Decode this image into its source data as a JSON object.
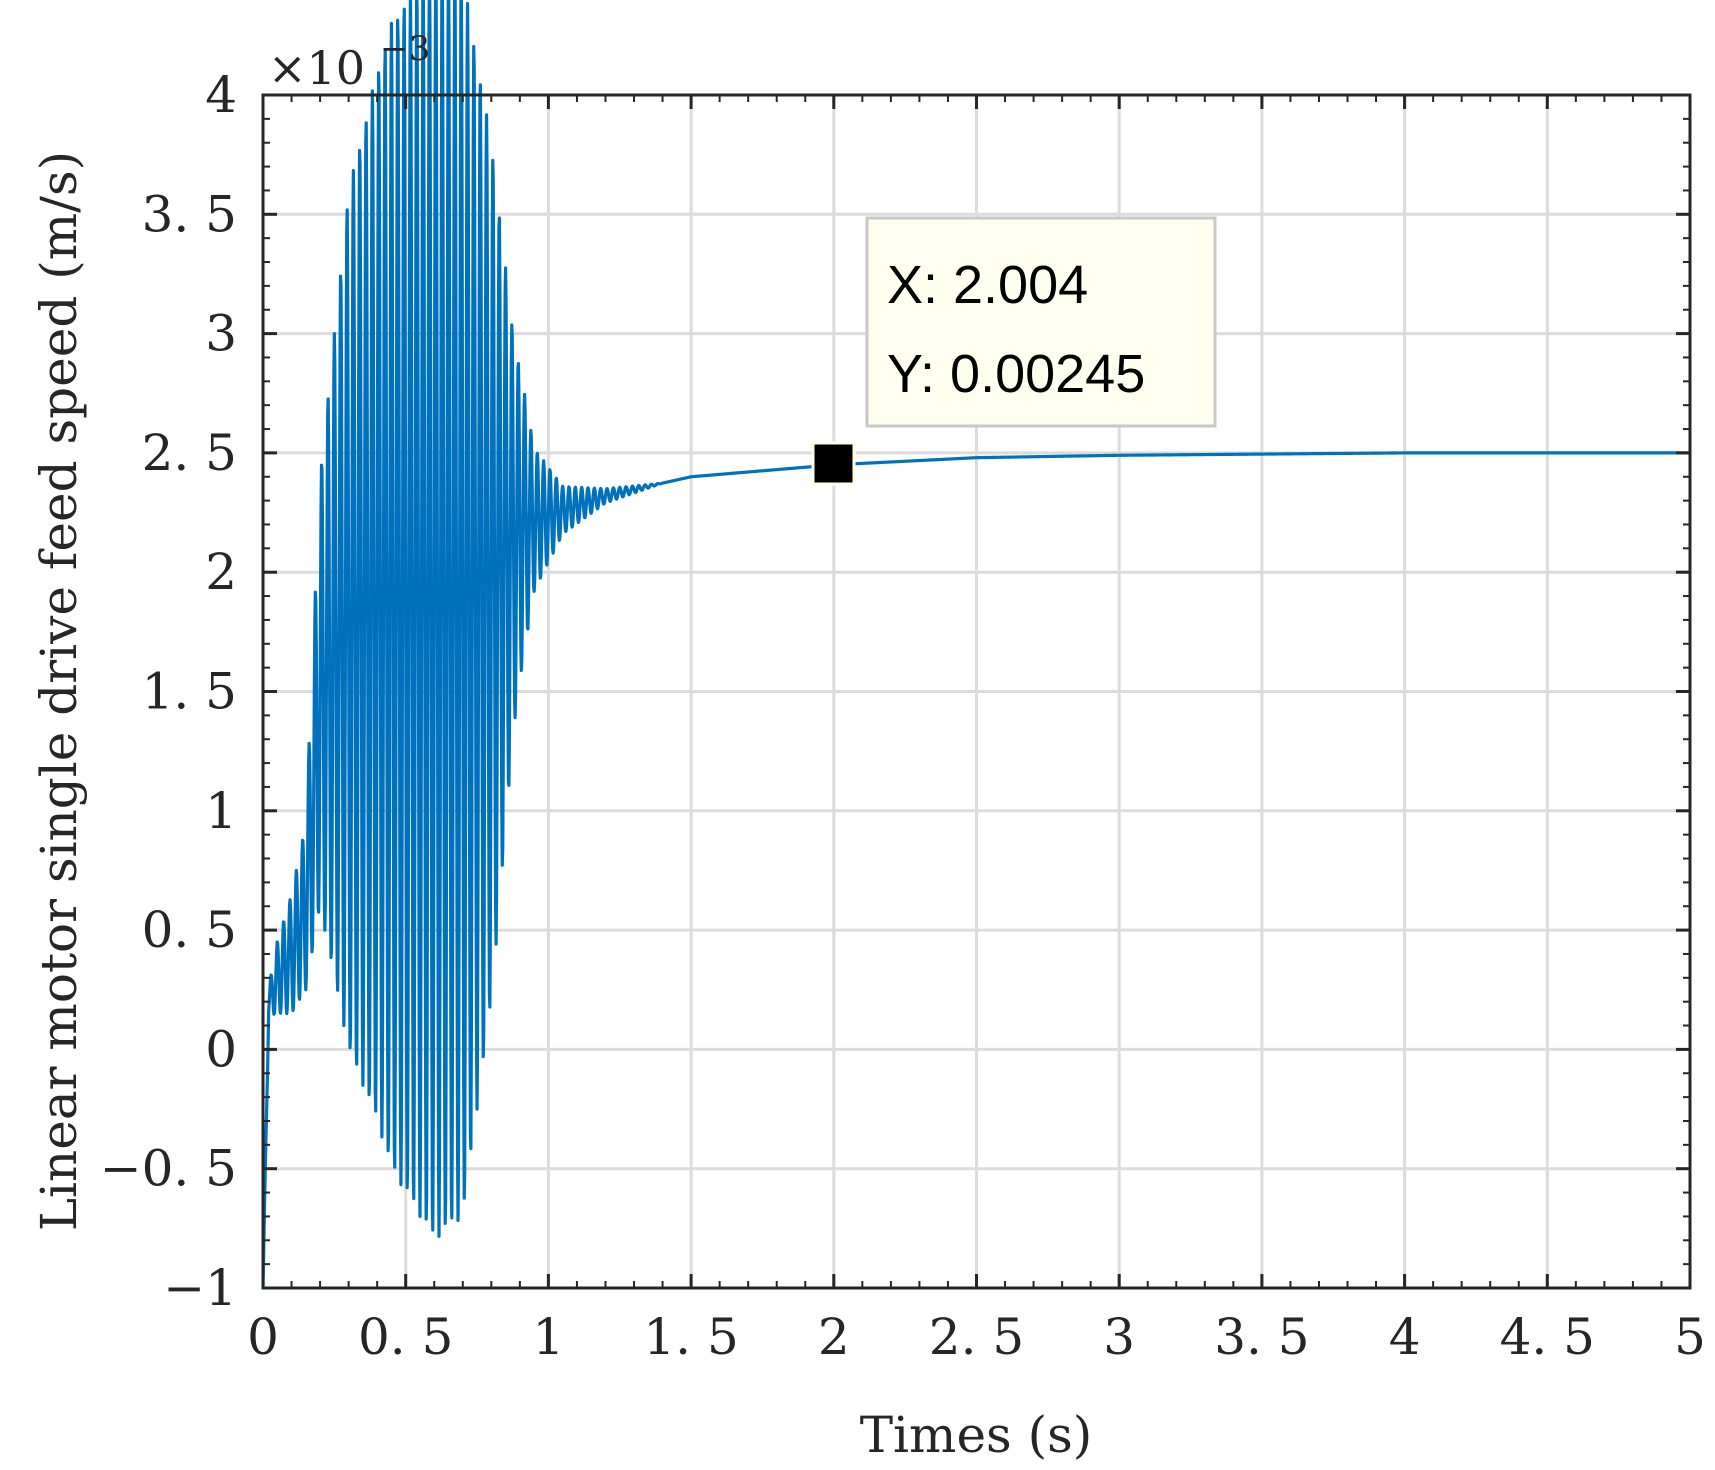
{
  "chart_data": {
    "type": "line",
    "xlabel": "Times (s)",
    "ylabel": "Linear motor single drive feed speed (m/s)",
    "y_exponent_label": "×10",
    "y_exponent_power": "−3",
    "xlim": [
      0,
      5
    ],
    "ylim": [
      -0.001,
      0.004
    ],
    "x_ticks": [
      "0",
      "0. 5",
      "1",
      "1. 5",
      "2",
      "2. 5",
      "3",
      "3. 5",
      "4",
      "4. 5",
      "5"
    ],
    "y_ticks": [
      "−1",
      "−0. 5",
      "0",
      "0. 5",
      "1",
      "1. 5",
      "2",
      "2. 5",
      "3",
      "3. 5",
      "4"
    ],
    "grid": true,
    "line_color": "#0072BD",
    "series": [
      {
        "description_points": [
          [
            0.0,
            -0.001
          ],
          [
            0.02,
            0.0002
          ],
          [
            0.05,
            0.0003
          ],
          [
            0.1,
            0.0004
          ],
          [
            0.15,
            0.0006
          ],
          [
            0.2,
            0.0015
          ],
          [
            0.3,
            0.0018
          ],
          [
            0.4,
            0.0019
          ],
          [
            0.5,
            0.0019
          ],
          [
            0.6,
            0.0019
          ],
          [
            0.7,
            0.0019
          ],
          [
            0.8,
            0.002
          ],
          [
            0.9,
            0.0022
          ],
          [
            1.0,
            0.00224
          ],
          [
            1.2,
            0.00232
          ],
          [
            1.5,
            0.0024
          ],
          [
            2.0,
            0.00245
          ],
          [
            2.5,
            0.00248
          ],
          [
            3.0,
            0.00249
          ],
          [
            4.0,
            0.0025
          ],
          [
            5.0,
            0.0025
          ]
        ],
        "oscillation_envelope": [
          [
            0.0,
            0.0
          ],
          [
            0.05,
            0.00015
          ],
          [
            0.15,
            0.00035
          ],
          [
            0.2,
            0.0009
          ],
          [
            0.3,
            0.0018
          ],
          [
            0.45,
            0.0024
          ],
          [
            0.6,
            0.0027
          ],
          [
            0.7,
            0.0026
          ],
          [
            0.8,
            0.0018
          ],
          [
            0.88,
            0.0008
          ],
          [
            0.95,
            0.0003
          ],
          [
            1.05,
            0.0001
          ],
          [
            1.2,
            3e-05
          ],
          [
            1.4,
            0.0
          ]
        ],
        "oscillation_frequency_hz": 45
      }
    ],
    "datatip": {
      "x": 2.004,
      "y": 0.00245,
      "x_text": "X: 2.004",
      "y_text": "Y: 0.00245"
    }
  }
}
